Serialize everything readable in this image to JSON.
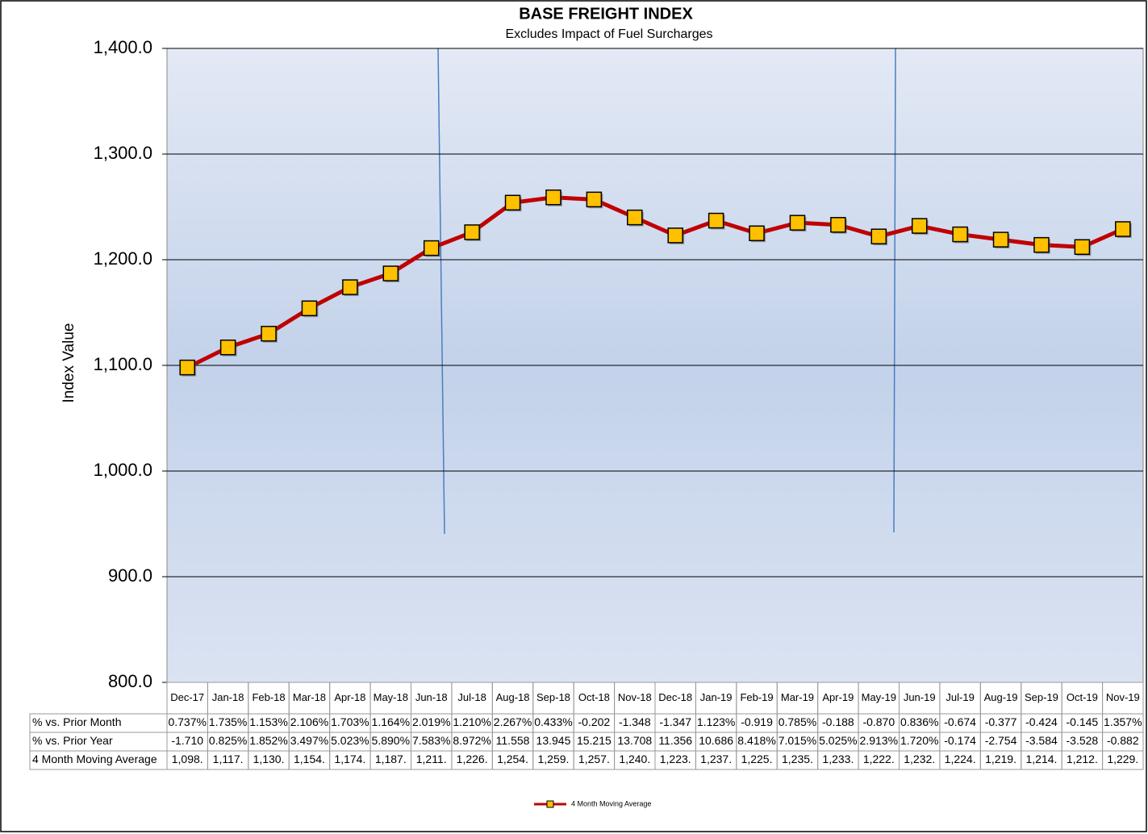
{
  "chart_data": {
    "type": "line",
    "title": "BASE FREIGHT INDEX",
    "subtitle": "Excludes Impact of Fuel Surcharges",
    "y_label": "Index Value",
    "categories": [
      "Dec-17",
      "Jan-18",
      "Feb-18",
      "Mar-18",
      "Apr-18",
      "May-18",
      "Jun-18",
      "Jul-18",
      "Aug-18",
      "Sep-18",
      "Oct-18",
      "Nov-18",
      "Dec-18",
      "Jan-19",
      "Feb-19",
      "Mar-19",
      "Apr-19",
      "May-19",
      "Jun-19",
      "Jul-19",
      "Aug-19",
      "Sep-19",
      "Oct-19",
      "Nov-19"
    ],
    "series": [
      {
        "name": "4 Month Moving Average",
        "color": "#c00000",
        "marker_color": "#ffc000",
        "values": [
          1098,
          1117,
          1130,
          1154,
          1174,
          1187,
          1211,
          1226,
          1254,
          1259,
          1257,
          1240,
          1223,
          1237,
          1225,
          1235,
          1233,
          1222,
          1232,
          1224,
          1219,
          1214,
          1212,
          1229
        ]
      }
    ],
    "ylim": [
      800,
      1400
    ],
    "yticks": [
      {
        "value": 800,
        "label": "800.0"
      },
      {
        "value": 900,
        "label": "900.0"
      },
      {
        "value": 1000,
        "label": "1,000.0"
      },
      {
        "value": 1100,
        "label": "1,100.0"
      },
      {
        "value": 1200,
        "label": "1,200.0"
      },
      {
        "value": 1300,
        "label": "1,300.0"
      },
      {
        "value": 1400,
        "label": "1,400.0"
      }
    ],
    "grid": true,
    "table": [
      {
        "name": "% vs. Prior Month",
        "values": [
          "0.737%",
          "1.735%",
          "1.153%",
          "2.106%",
          "1.703%",
          "1.164%",
          "2.019%",
          "1.210%",
          "2.267%",
          "0.433%",
          "-0.202",
          "-1.348",
          "-1.347",
          "1.123%",
          "-0.919",
          "0.785%",
          "-0.188",
          "-0.870",
          "0.836%",
          "-0.674",
          "-0.377",
          "-0.424",
          "-0.145",
          "1.357%"
        ]
      },
      {
        "name": "% vs. Prior Year",
        "values": [
          "-1.710",
          "0.825%",
          "1.852%",
          "3.497%",
          "5.023%",
          "5.890%",
          "7.583%",
          "8.972%",
          "11.558",
          "13.945",
          "15.215",
          "13.708",
          "11.356",
          "10.686",
          "8.418%",
          "7.015%",
          "5.025%",
          "2.913%",
          "1.720%",
          "-0.174",
          "-2.754",
          "-3.584",
          "-3.528",
          "-0.882"
        ]
      },
      {
        "name": "4 Month Moving Average",
        "values": [
          "1,098.",
          "1,117.",
          "1,130.",
          "1,154.",
          "1,174.",
          "1,187.",
          "1,211.",
          "1,226.",
          "1,254.",
          "1,259.",
          "1,257.",
          "1,240.",
          "1,223.",
          "1,237.",
          "1,225.",
          "1,235.",
          "1,233.",
          "1,222.",
          "1,232.",
          "1,224.",
          "1,219.",
          "1,214.",
          "1,212.",
          "1,229."
        ]
      }
    ]
  }
}
